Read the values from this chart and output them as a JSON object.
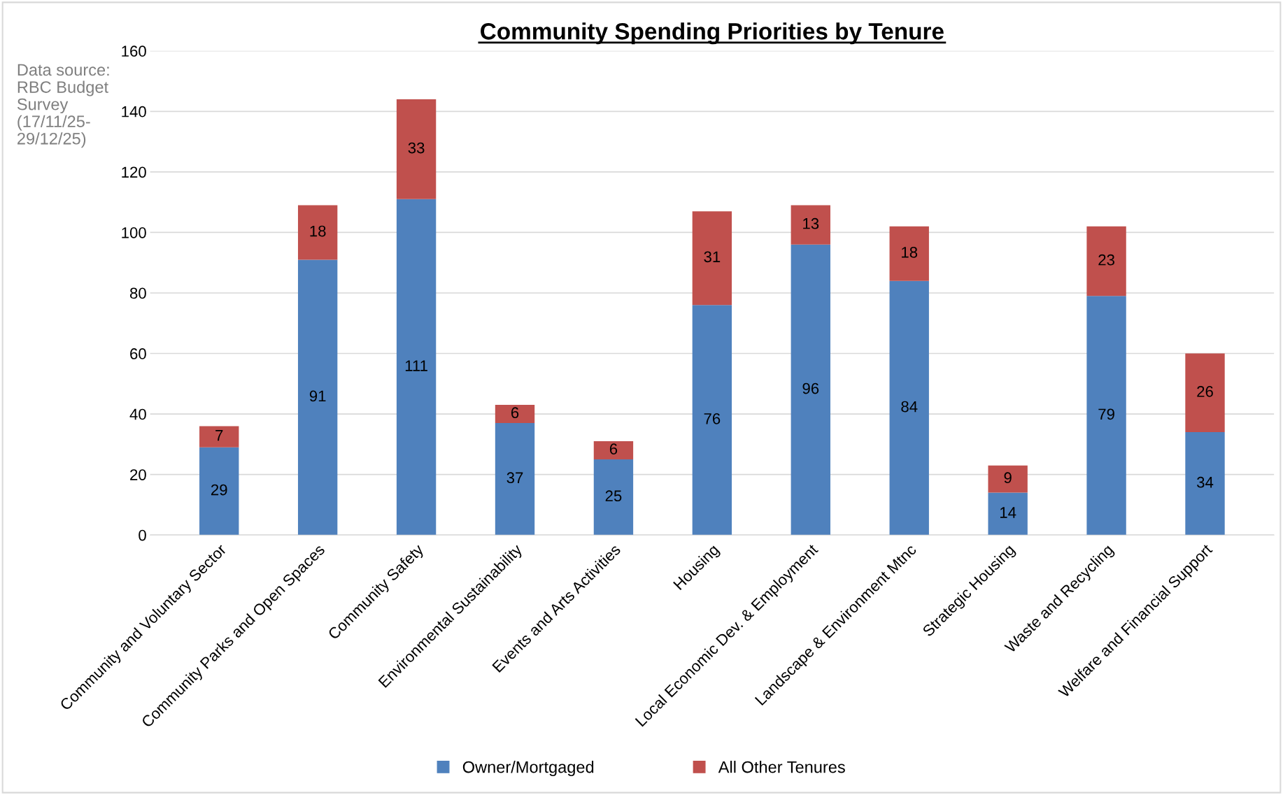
{
  "chart_data": {
    "type": "bar",
    "stacked": true,
    "title": "Community Spending Priorities by Tenure",
    "categories": [
      "Community and Voluntary Sector",
      "Community Parks and Open Spaces",
      "Community Safety",
      "Environmental Sustainability",
      "Events and Arts Activities",
      "Housing",
      "Local Economic Dev. & Employment",
      "Landscape & Environment Mtnc",
      "Strategic Housing",
      "Waste and Recycling",
      "Welfare and Financial Support"
    ],
    "series": [
      {
        "name": "Owner/Mortgaged",
        "color": "#4f81bd",
        "values": [
          29,
          91,
          111,
          37,
          25,
          76,
          96,
          84,
          14,
          79,
          34
        ]
      },
      {
        "name": "All Other Tenures",
        "color": "#c0504d",
        "values": [
          7,
          18,
          33,
          6,
          6,
          31,
          13,
          18,
          9,
          23,
          26
        ]
      }
    ],
    "ylim": [
      0,
      160
    ],
    "yticks": [
      0,
      20,
      40,
      60,
      80,
      100,
      120,
      140,
      160
    ],
    "grid": "y",
    "legend": "bottom",
    "data_labels": true,
    "annotations": [
      "Data source:\nRBC Budget\nSurvey\n(17/11/25-\n29/12/25)"
    ]
  }
}
